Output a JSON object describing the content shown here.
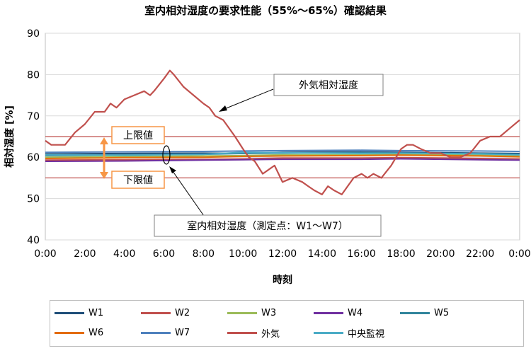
{
  "chart_data": {
    "type": "line",
    "title": "室内相対湿度の要求性能（55%～65%）確認結果",
    "xlabel": "時刻",
    "ylabel": "相対湿度 [%]",
    "ylim": [
      40,
      90
    ],
    "yticks": [
      "40",
      "50",
      "60",
      "70",
      "80",
      "90"
    ],
    "xticks": [
      "0:00",
      "2:00",
      "4:00",
      "6:00",
      "8:00",
      "10:00",
      "12:00",
      "14:00",
      "16:00",
      "18:00",
      "20:00",
      "22:00",
      "0:00"
    ],
    "grid": "horizontal",
    "legend_position": "bottom",
    "reference_lines": [
      {
        "label": "上限値",
        "value": 65,
        "color": "#c0504d"
      },
      {
        "label": "下限値",
        "value": 55,
        "color": "#c0504d"
      }
    ],
    "annotations": {
      "outdoor": "外気相対湿度",
      "indoor": "室内相対湿度（測定点：W1～W7）"
    },
    "series": [
      {
        "name": "W1",
        "color": "#1f4e79",
        "x": [
          0,
          4,
          8,
          10,
          12,
          16,
          18,
          22,
          24
        ],
        "y": [
          60.8,
          60.9,
          61.0,
          60.9,
          61.2,
          61.3,
          61.2,
          61.0,
          60.9
        ]
      },
      {
        "name": "W2",
        "color": "#c0504d",
        "x": [
          0,
          4,
          8,
          10,
          12,
          16,
          18,
          22,
          24
        ],
        "y": [
          59.3,
          59.4,
          59.5,
          59.6,
          59.8,
          59.8,
          59.9,
          59.7,
          59.6
        ]
      },
      {
        "name": "W3",
        "color": "#9bbb59",
        "x": [
          0,
          4,
          8,
          10,
          12,
          16,
          18,
          22,
          24
        ],
        "y": [
          60.0,
          60.2,
          60.3,
          60.4,
          60.6,
          60.6,
          60.7,
          60.5,
          60.3
        ]
      },
      {
        "name": "W4",
        "color": "#7030a0",
        "x": [
          0,
          4,
          8,
          10,
          12,
          16,
          18,
          22,
          24
        ],
        "y": [
          59.0,
          59.1,
          59.3,
          59.4,
          59.5,
          59.5,
          59.6,
          59.4,
          59.3
        ]
      },
      {
        "name": "W5",
        "color": "#31859c",
        "x": [
          0,
          4,
          8,
          10,
          12,
          16,
          18,
          22,
          24
        ],
        "y": [
          60.4,
          60.6,
          60.7,
          60.9,
          61.0,
          61.1,
          61.0,
          60.9,
          60.7
        ]
      },
      {
        "name": "W6",
        "color": "#e36c09",
        "x": [
          0,
          4,
          8,
          10,
          12,
          16,
          18,
          22,
          24
        ],
        "y": [
          59.7,
          59.9,
          60.0,
          60.2,
          60.3,
          60.4,
          60.5,
          60.3,
          60.1
        ]
      },
      {
        "name": "W7",
        "color": "#4f81bd",
        "x": [
          0,
          4,
          8,
          10,
          12,
          16,
          18,
          22,
          24
        ],
        "y": [
          61.2,
          61.3,
          61.4,
          61.5,
          61.6,
          61.7,
          61.6,
          61.5,
          61.4
        ]
      },
      {
        "name": "外気",
        "color": "#c0504d",
        "x": [
          0,
          0.3,
          1,
          1.5,
          2,
          2.5,
          3,
          3.3,
          3.6,
          4,
          4.5,
          5,
          5.3,
          5.5,
          6,
          6.3,
          6.5,
          7,
          7.5,
          8,
          8.3,
          8.6,
          9,
          9.3,
          9.6,
          10,
          10.3,
          10.6,
          11,
          11.3,
          11.6,
          12,
          12.5,
          13,
          13.3,
          13.6,
          14,
          14.3,
          14.6,
          15,
          15.3,
          15.6,
          16,
          16.3,
          16.6,
          17,
          17.5,
          18,
          18.3,
          18.6,
          19,
          19.5,
          20,
          20.5,
          21,
          21.5,
          22,
          22.5,
          23,
          23.5,
          24
        ],
        "y": [
          64,
          63,
          63,
          66,
          68,
          71,
          71,
          73,
          72,
          74,
          75,
          76,
          75,
          76,
          79,
          81,
          80,
          77,
          75,
          73,
          72,
          70,
          69,
          67,
          65,
          62,
          60,
          59,
          56,
          57,
          58,
          54,
          55,
          54,
          53,
          52,
          51,
          53,
          52,
          51,
          53,
          55,
          56,
          55,
          56,
          55,
          58,
          62,
          63,
          63,
          62,
          61,
          61,
          60,
          60,
          61,
          64,
          65,
          65,
          67,
          69
        ]
      },
      {
        "name": "中央監視",
        "color": "#4bacc6",
        "x": [
          0,
          4,
          8,
          10,
          12,
          16,
          18,
          22,
          24
        ],
        "y": [
          60.6,
          60.5,
          60.7,
          61.2,
          61.1,
          60.9,
          61.0,
          60.8,
          60.6
        ]
      }
    ]
  }
}
